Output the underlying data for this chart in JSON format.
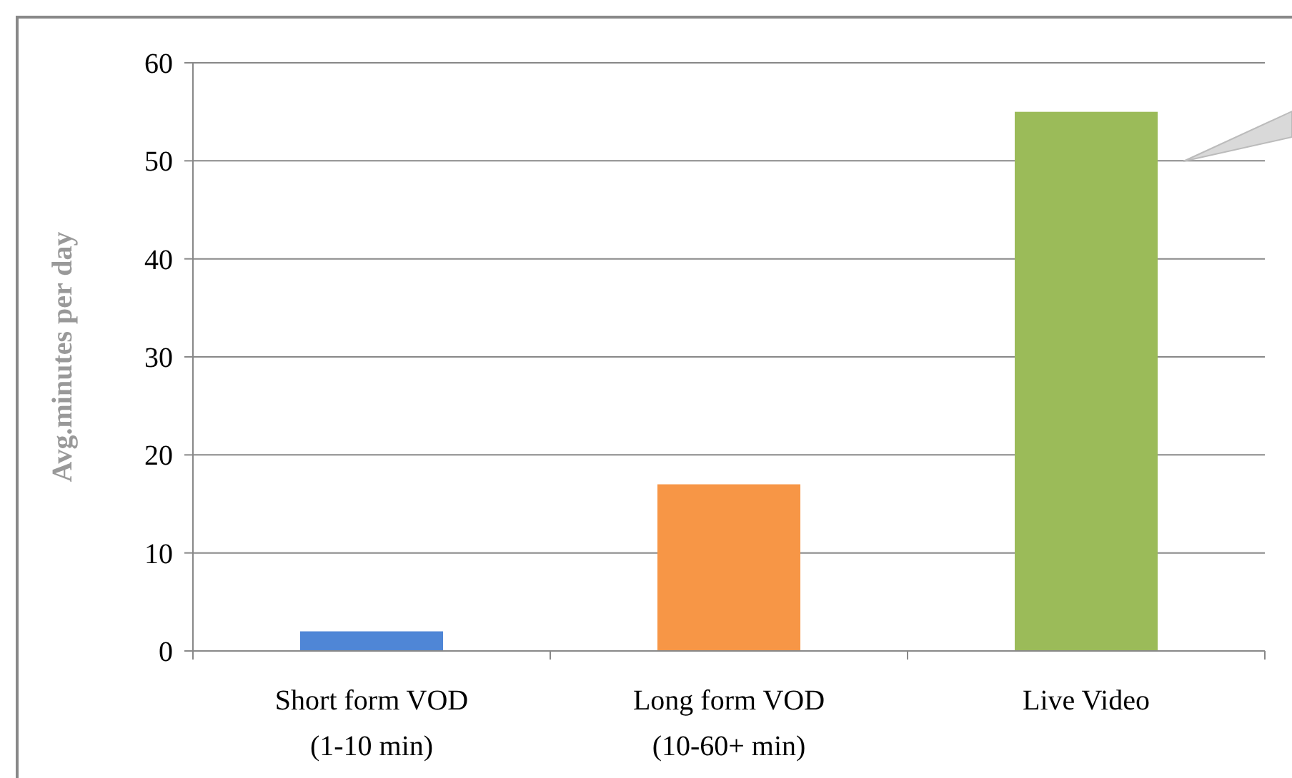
{
  "chart_data": {
    "type": "bar",
    "ylabel": "Avg.minutes per day",
    "categories": [
      "Short form VOD\n(1-10 min)",
      "Long form VOD\n(10-60+ min)",
      "Live Video"
    ],
    "values": [
      2,
      17,
      55
    ],
    "colors": [
      "#4f86d6",
      "#f79646",
      "#9bbb59"
    ],
    "ylim": [
      0,
      60
    ],
    "yticks": [
      0,
      10,
      20,
      30,
      40,
      50,
      60
    ],
    "grid": "y"
  }
}
